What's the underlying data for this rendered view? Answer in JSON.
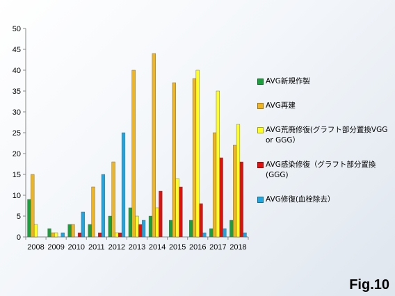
{
  "chart_data": {
    "type": "bar",
    "categories": [
      "2008",
      "2009",
      "2010",
      "2011",
      "2012",
      "2013",
      "2014",
      "2015",
      "2016",
      "2017",
      "2018"
    ],
    "ylim": [
      0,
      50
    ],
    "yticks": [
      0,
      5,
      10,
      15,
      20,
      25,
      30,
      35,
      40,
      45,
      50
    ],
    "grid": false,
    "legend_position": "right",
    "series": [
      {
        "name": "AVG新規作製",
        "color": "#1aa03a",
        "values": [
          9,
          2,
          3,
          3,
          5,
          7,
          5,
          4,
          4,
          2,
          4
        ]
      },
      {
        "name": "AVG再建",
        "color": "#f0b41e",
        "values": [
          15,
          1,
          3,
          12,
          18,
          40,
          44,
          37,
          38,
          25,
          22
        ]
      },
      {
        "name": "AVG荒廃修復(グラフト部分置換VGG or GGG）",
        "color": "#ffff1e",
        "values": [
          3,
          1,
          0,
          0,
          1,
          5,
          7,
          14,
          40,
          35,
          27
        ]
      },
      {
        "name": "AVG感染修復（グラフト部分置換(GGG)",
        "color": "#e01010",
        "values": [
          0,
          0,
          1,
          1,
          1,
          3,
          11,
          12,
          8,
          19,
          18
        ]
      },
      {
        "name": "AVG修復(血栓除去）",
        "color": "#1ea6e0",
        "values": [
          0,
          1,
          6,
          15,
          25,
          4,
          0,
          0,
          1,
          2,
          1
        ]
      }
    ]
  },
  "legend": [
    {
      "label": "AVG新規作製",
      "color": "#1aa03a"
    },
    {
      "label": "AVG再建",
      "color": "#f0b41e"
    },
    {
      "label": "AVG荒廃修復(グラフト部分置換VGG or GGG）",
      "color": "#ffff1e"
    },
    {
      "label": "AVG感染修復（グラフト部分置換(GGG)",
      "color": "#e01010"
    },
    {
      "label": "AVG修復(血栓除去）",
      "color": "#1ea6e0"
    }
  ],
  "figure_label": "Fig.10"
}
